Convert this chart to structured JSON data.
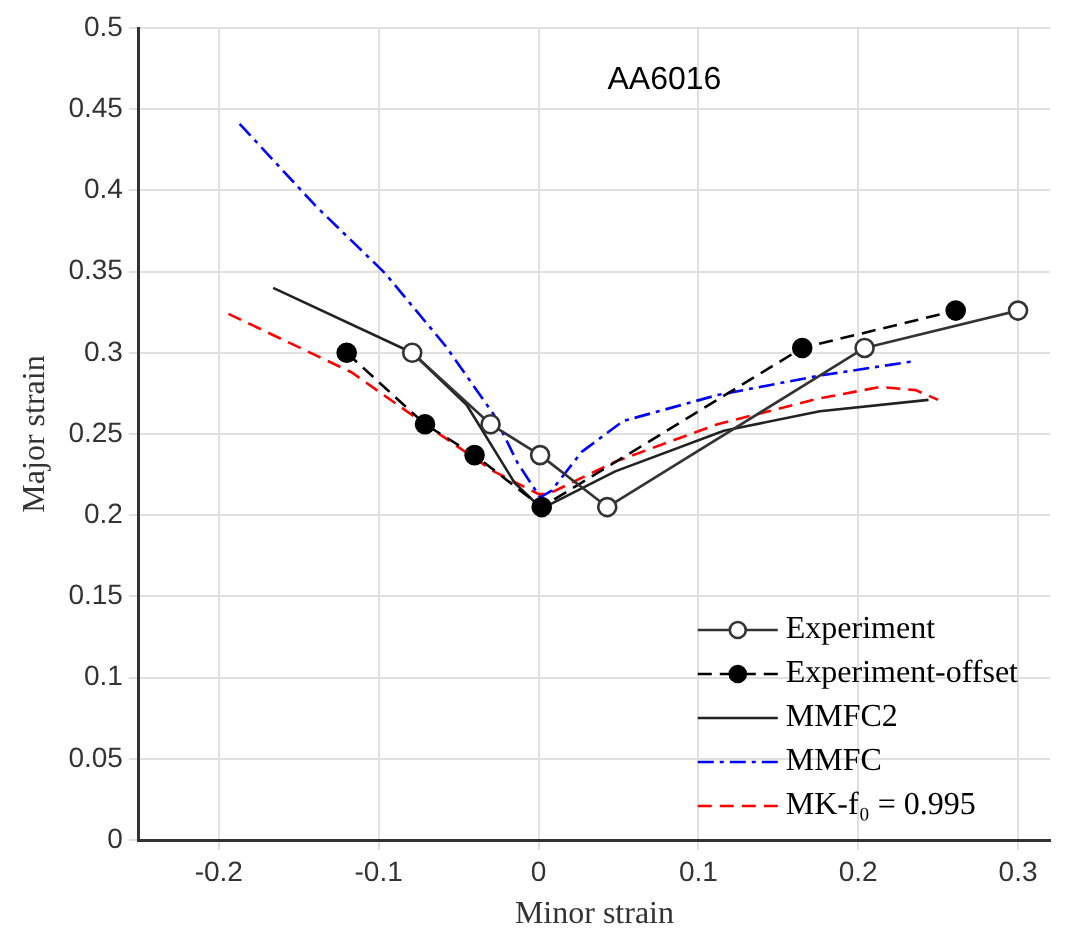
{
  "chart_data": {
    "type": "line",
    "title": "AA6016",
    "xlabel": "Minor strain",
    "ylabel": "Major strain",
    "xlim": [
      -0.25,
      0.32
    ],
    "xticks": [
      -0.2,
      -0.1,
      0,
      0.1,
      0.2,
      0.3
    ],
    "ylim": [
      0,
      0.5
    ],
    "yticks": [
      0,
      0.05,
      0.1,
      0.15,
      0.2,
      0.25,
      0.3,
      0.35,
      0.4,
      0.45,
      0.5
    ],
    "grid": true,
    "legend": "bottom right",
    "series": [
      {
        "name": "Experiment",
        "color": "#333333",
        "marker": "circle",
        "line_style": "solid",
        "x": [
          -0.079,
          -0.03,
          0.001,
          0.043,
          0.204,
          0.3
        ],
        "values": [
          0.3,
          0.256,
          0.237,
          0.205,
          0.303,
          0.326
        ]
      },
      {
        "name": "Experiment-offset",
        "color": "#000000",
        "marker": "circle",
        "line_style": "dashed",
        "x": [
          -0.12,
          -0.071,
          -0.04,
          0.002,
          0.165,
          0.261
        ],
        "values": [
          0.3,
          0.256,
          0.237,
          0.205,
          0.303,
          0.326
        ]
      },
      {
        "name": "MMFC2",
        "color": "#222222",
        "marker": "none",
        "line_style": "solid",
        "x": [
          -0.166,
          -0.079,
          -0.045,
          -0.015,
          0.002,
          0.048,
          0.116,
          0.176,
          0.244
        ],
        "values": [
          0.34,
          0.3,
          0.268,
          0.22,
          0.204,
          0.227,
          0.252,
          0.264,
          0.271
        ]
      },
      {
        "name": "MMFC",
        "color": "#0000ff",
        "marker": "none",
        "line_style": "dashdot",
        "x": [
          -0.187,
          -0.139,
          -0.096,
          -0.058,
          -0.028,
          -0.013,
          0.001,
          0.008,
          0.027,
          0.053,
          0.112,
          0.176,
          0.236
        ],
        "values": [
          0.441,
          0.39,
          0.349,
          0.304,
          0.262,
          0.232,
          0.211,
          0.215,
          0.239,
          0.258,
          0.274,
          0.286,
          0.295
        ]
      },
      {
        "name": "MK-f₀ = 0.995",
        "color": "#ff0000",
        "marker": "none",
        "line_style": "dashed",
        "x": [
          -0.194,
          -0.117,
          -0.071,
          -0.028,
          0,
          0.006,
          0.048,
          0.112,
          0.176,
          0.214,
          0.236,
          0.25
        ],
        "values": [
          0.324,
          0.288,
          0.256,
          0.227,
          0.213,
          0.213,
          0.233,
          0.256,
          0.272,
          0.279,
          0.277,
          0.271
        ]
      }
    ]
  }
}
